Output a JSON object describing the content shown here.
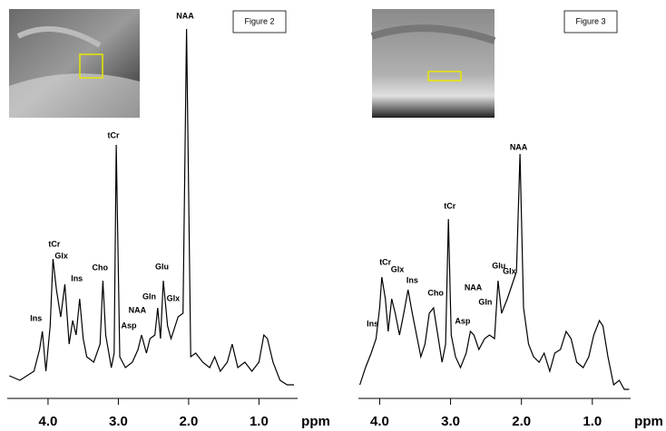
{
  "chart_data": [
    {
      "type": "line",
      "figure_label": "Figure 2",
      "x_label": "ppm",
      "xlim": [
        4.58,
        0.45
      ],
      "ylim": [
        0,
        100
      ],
      "xticks": [
        {
          "value": 4,
          "label": "4.0"
        },
        {
          "value": 3,
          "label": "3.0"
        },
        {
          "value": 2,
          "label": "2.0"
        },
        {
          "value": 1,
          "label": "1.0"
        }
      ],
      "x": [
        4.55,
        4.4,
        4.2,
        4.12,
        4.08,
        4.03,
        3.97,
        3.93,
        3.88,
        3.82,
        3.76,
        3.7,
        3.65,
        3.6,
        3.55,
        3.5,
        3.45,
        3.35,
        3.26,
        3.22,
        3.18,
        3.1,
        3.06,
        3.03,
        2.98,
        2.9,
        2.8,
        2.72,
        2.67,
        2.6,
        2.55,
        2.48,
        2.44,
        2.4,
        2.36,
        2.3,
        2.25,
        2.15,
        2.08,
        2.03,
        1.97,
        1.9,
        1.8,
        1.7,
        1.63,
        1.55,
        1.45,
        1.38,
        1.3,
        1.2,
        1.1,
        1.0,
        0.93,
        0.88,
        0.8,
        0.7,
        0.6,
        0.5
      ],
      "series": [
        {
          "color": "#000000",
          "values": [
            3.75,
            2.5,
            5,
            11,
            16,
            5,
            17.5,
            36,
            27.5,
            20,
            29,
            12.5,
            19,
            15,
            25,
            14,
            9,
            7.5,
            12.5,
            30,
            15,
            6,
            10,
            67.5,
            9,
            6,
            7.5,
            11,
            15,
            10,
            14,
            15,
            22.5,
            14,
            30,
            17.5,
            14,
            20,
            21,
            99.5,
            9,
            10,
            7.5,
            6,
            9,
            5,
            7.5,
            12.5,
            6,
            7.5,
            5,
            7.5,
            15,
            14,
            7.5,
            2.5,
            1.25,
            1.25
          ]
        }
      ],
      "annotations": [
        {
          "text": "tCr",
          "x": 3.91,
          "y": 40
        },
        {
          "text": "Glx",
          "x": 3.81,
          "y": 36.75
        },
        {
          "text": "Ins",
          "x": 4.17,
          "y": 19.5
        },
        {
          "text": "Ins",
          "x": 3.59,
          "y": 30.5
        },
        {
          "text": "Cho",
          "x": 3.26,
          "y": 33.5
        },
        {
          "text": "tCr",
          "x": 3.07,
          "y": 70
        },
        {
          "text": "Asp",
          "x": 2.85,
          "y": 17.5
        },
        {
          "text": "NAA",
          "x": 2.73,
          "y": 21.75
        },
        {
          "text": "Gln",
          "x": 2.56,
          "y": 25.5
        },
        {
          "text": "Glu",
          "x": 2.38,
          "y": 33.75
        },
        {
          "text": "Glx",
          "x": 2.22,
          "y": 25
        },
        {
          "text": "NAA",
          "x": 2.05,
          "y": 103
        }
      ]
    },
    {
      "type": "line",
      "figure_label": "Figure 3",
      "x_label": "ppm",
      "xlim": [
        4.3,
        0.46
      ],
      "ylim": [
        0,
        100
      ],
      "xticks": [
        {
          "value": 4,
          "label": "4.0"
        },
        {
          "value": 3,
          "label": "3.0"
        },
        {
          "value": 2,
          "label": "2.0"
        },
        {
          "value": 1,
          "label": "1.0"
        }
      ],
      "x": [
        4.28,
        4.2,
        4.12,
        4.05,
        4.0,
        3.97,
        3.92,
        3.88,
        3.83,
        3.78,
        3.72,
        3.66,
        3.6,
        3.54,
        3.48,
        3.42,
        3.36,
        3.3,
        3.24,
        3.18,
        3.12,
        3.07,
        3.03,
        2.99,
        2.93,
        2.86,
        2.78,
        2.72,
        2.67,
        2.6,
        2.52,
        2.45,
        2.38,
        2.33,
        2.28,
        2.2,
        2.13,
        2.07,
        2.02,
        1.97,
        1.9,
        1.83,
        1.75,
        1.68,
        1.6,
        1.53,
        1.45,
        1.37,
        1.3,
        1.22,
        1.13,
        1.05,
        0.98,
        0.9,
        0.85,
        0.78,
        0.7,
        0.62,
        0.55,
        0.48
      ],
      "series": [
        {
          "color": "#000000",
          "values": [
            1.25,
            6,
            10,
            14,
            22.5,
            31,
            25,
            16,
            25,
            21,
            15,
            21,
            27.5,
            21,
            15,
            9,
            12.5,
            21,
            22.5,
            15,
            7.5,
            12.5,
            47,
            15,
            9,
            6,
            10,
            16,
            15,
            11,
            14,
            15,
            14,
            30,
            21,
            25,
            29,
            32.5,
            65,
            22.5,
            12.5,
            9,
            7.5,
            10,
            5,
            10,
            11,
            16,
            14,
            7.5,
            6,
            9,
            15,
            19,
            17.5,
            9,
            1.25,
            2.5,
            0,
            0
          ]
        }
      ],
      "annotations": [
        {
          "text": "tCr",
          "x": 3.92,
          "y": 35
        },
        {
          "text": "Glx",
          "x": 3.75,
          "y": 33
        },
        {
          "text": "Ins",
          "x": 4.1,
          "y": 18
        },
        {
          "text": "Ins",
          "x": 3.54,
          "y": 30
        },
        {
          "text": "Cho",
          "x": 3.21,
          "y": 26.5
        },
        {
          "text": "tCr",
          "x": 3.01,
          "y": 50.5
        },
        {
          "text": "NAA",
          "x": 2.68,
          "y": 28
        },
        {
          "text": "Asp",
          "x": 2.83,
          "y": 18.75
        },
        {
          "text": "Gln",
          "x": 2.51,
          "y": 24
        },
        {
          "text": "Glu",
          "x": 2.32,
          "y": 34
        },
        {
          "text": "Glx",
          "x": 2.17,
          "y": 32.5
        },
        {
          "text": "NAA",
          "x": 2.04,
          "y": 66.75
        }
      ]
    }
  ]
}
